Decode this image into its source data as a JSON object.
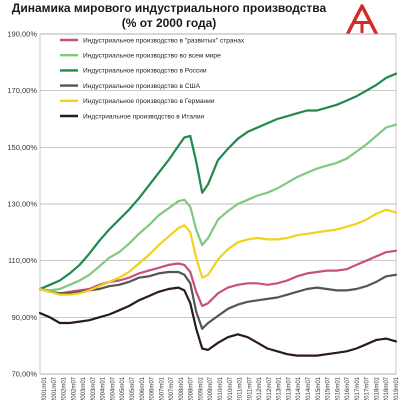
{
  "header": {
    "title_line1": "Динамика мирового индустриального производства",
    "title_line2": "(% от 2000 года)",
    "logo_icon": "red-triangle-logo-icon"
  },
  "chart_data": {
    "type": "line",
    "ylim": [
      70,
      190
    ],
    "yticks": [
      70,
      90,
      110,
      130,
      150,
      170,
      190
    ],
    "ytick_labels": [
      "70,00%",
      "90,00%",
      "110,00%",
      "130,00%",
      "150,00%",
      "170,00%",
      "190,00%"
    ],
    "grid": true,
    "legend_position": "top-left",
    "x_labels": [
      "2001m01",
      "2001m07",
      "2002m01",
      "2002m07",
      "2003m01",
      "2003m07",
      "2004m01",
      "2004m07",
      "2005m01",
      "2005m07",
      "2006m01",
      "2006m07",
      "2007m01",
      "2007m07",
      "2008m01",
      "2008m07",
      "2009m01",
      "2009m07",
      "2010m01",
      "2010m07",
      "2011m01",
      "2011m07",
      "2012m01",
      "2012m07",
      "2013m01",
      "2013m07",
      "2014m01",
      "2014m07",
      "2015m01",
      "2015m07",
      "2016m01",
      "2016m07",
      "2017m01",
      "2017m07",
      "2018m01",
      "2018m07",
      "2019m01"
    ],
    "series": [
      {
        "name": "Индустриальное производство в \"развитых\" странах",
        "color": "#c8507a",
        "values": [
          [
            2001.0,
            100
          ],
          [
            2001.5,
            99
          ],
          [
            2002.0,
            98.5
          ],
          [
            2002.5,
            99
          ],
          [
            2003.0,
            99.5
          ],
          [
            2003.5,
            100
          ],
          [
            2004.0,
            101.5
          ],
          [
            2004.5,
            102.5
          ],
          [
            2005.0,
            103
          ],
          [
            2005.5,
            104
          ],
          [
            2006.0,
            105.5
          ],
          [
            2006.5,
            106.5
          ],
          [
            2007.0,
            107.5
          ],
          [
            2007.5,
            108.5
          ],
          [
            2008.0,
            109
          ],
          [
            2008.3,
            108.5
          ],
          [
            2008.6,
            106
          ],
          [
            2008.9,
            99
          ],
          [
            2009.2,
            94
          ],
          [
            2009.5,
            95
          ],
          [
            2010.0,
            98.5
          ],
          [
            2010.5,
            100.5
          ],
          [
            2011.0,
            101.5
          ],
          [
            2011.5,
            102
          ],
          [
            2012.0,
            102
          ],
          [
            2012.5,
            101.5
          ],
          [
            2013.0,
            102
          ],
          [
            2013.5,
            103
          ],
          [
            2014.0,
            104.5
          ],
          [
            2014.5,
            105.5
          ],
          [
            2015.0,
            106
          ],
          [
            2015.5,
            106.5
          ],
          [
            2016.0,
            106.5
          ],
          [
            2016.5,
            107
          ],
          [
            2017.0,
            108.5
          ],
          [
            2017.5,
            110
          ],
          [
            2018.0,
            111.5
          ],
          [
            2018.5,
            113
          ],
          [
            2019.0,
            113.5
          ]
        ]
      },
      {
        "name": "Индустриальное производство во всем мире",
        "color": "#7fc97f",
        "values": [
          [
            2001.0,
            100
          ],
          [
            2001.5,
            99.5
          ],
          [
            2002.0,
            100
          ],
          [
            2002.5,
            101.5
          ],
          [
            2003.0,
            103
          ],
          [
            2003.5,
            105
          ],
          [
            2004.0,
            108
          ],
          [
            2004.5,
            111
          ],
          [
            2005.0,
            113
          ],
          [
            2005.5,
            116
          ],
          [
            2006.0,
            119.5
          ],
          [
            2006.5,
            122.5
          ],
          [
            2007.0,
            126
          ],
          [
            2007.5,
            128.5
          ],
          [
            2008.0,
            131
          ],
          [
            2008.3,
            131.5
          ],
          [
            2008.6,
            129
          ],
          [
            2008.9,
            121
          ],
          [
            2009.2,
            115.5
          ],
          [
            2009.5,
            118
          ],
          [
            2010.0,
            124.5
          ],
          [
            2010.5,
            127.5
          ],
          [
            2011.0,
            130
          ],
          [
            2011.5,
            131.5
          ],
          [
            2012.0,
            133
          ],
          [
            2012.5,
            134
          ],
          [
            2013.0,
            135.5
          ],
          [
            2013.5,
            137.5
          ],
          [
            2014.0,
            139.5
          ],
          [
            2014.5,
            141
          ],
          [
            2015.0,
            142.5
          ],
          [
            2015.5,
            143.5
          ],
          [
            2016.0,
            144.5
          ],
          [
            2016.5,
            146
          ],
          [
            2017.0,
            148.5
          ],
          [
            2017.5,
            151
          ],
          [
            2018.0,
            154
          ],
          [
            2018.5,
            157
          ],
          [
            2019.0,
            158
          ]
        ]
      },
      {
        "name": "Индустриальное производство в России",
        "color": "#1f8a4c",
        "values": [
          [
            2001.0,
            100
          ],
          [
            2001.5,
            101.5
          ],
          [
            2002.0,
            103
          ],
          [
            2002.5,
            105.5
          ],
          [
            2003.0,
            108.5
          ],
          [
            2003.5,
            112.5
          ],
          [
            2004.0,
            117
          ],
          [
            2004.5,
            121
          ],
          [
            2005.0,
            124.5
          ],
          [
            2005.5,
            128
          ],
          [
            2006.0,
            132
          ],
          [
            2006.5,
            136.5
          ],
          [
            2007.0,
            141
          ],
          [
            2007.5,
            145.5
          ],
          [
            2008.0,
            150.5
          ],
          [
            2008.3,
            153.5
          ],
          [
            2008.6,
            154
          ],
          [
            2008.9,
            145
          ],
          [
            2009.2,
            134
          ],
          [
            2009.5,
            137
          ],
          [
            2010.0,
            145.5
          ],
          [
            2010.5,
            149.5
          ],
          [
            2011.0,
            153
          ],
          [
            2011.5,
            155.5
          ],
          [
            2012.0,
            157
          ],
          [
            2012.5,
            158.5
          ],
          [
            2013.0,
            160
          ],
          [
            2013.5,
            161
          ],
          [
            2014.0,
            162
          ],
          [
            2014.5,
            163
          ],
          [
            2015.0,
            163
          ],
          [
            2015.5,
            164
          ],
          [
            2016.0,
            165
          ],
          [
            2016.5,
            166.5
          ],
          [
            2017.0,
            168
          ],
          [
            2017.5,
            170
          ],
          [
            2018.0,
            172
          ],
          [
            2018.5,
            174.5
          ],
          [
            2019.0,
            176
          ]
        ]
      },
      {
        "name": "Индустриальное производство в США",
        "color": "#555555",
        "values": [
          [
            2001.0,
            100
          ],
          [
            2001.5,
            99
          ],
          [
            2002.0,
            98.5
          ],
          [
            2002.5,
            98.5
          ],
          [
            2003.0,
            99
          ],
          [
            2003.5,
            99.5
          ],
          [
            2004.0,
            100
          ],
          [
            2004.5,
            101
          ],
          [
            2005.0,
            101.5
          ],
          [
            2005.5,
            102.5
          ],
          [
            2006.0,
            104
          ],
          [
            2006.5,
            104.5
          ],
          [
            2007.0,
            105.5
          ],
          [
            2007.5,
            106
          ],
          [
            2008.0,
            106
          ],
          [
            2008.3,
            105
          ],
          [
            2008.6,
            102
          ],
          [
            2008.9,
            92
          ],
          [
            2009.2,
            86
          ],
          [
            2009.5,
            88
          ],
          [
            2010.0,
            90.5
          ],
          [
            2010.5,
            93
          ],
          [
            2011.0,
            94.5
          ],
          [
            2011.5,
            95.5
          ],
          [
            2012.0,
            96
          ],
          [
            2012.5,
            96.5
          ],
          [
            2013.0,
            97
          ],
          [
            2013.5,
            98
          ],
          [
            2014.0,
            99
          ],
          [
            2014.5,
            100
          ],
          [
            2015.0,
            100.5
          ],
          [
            2015.5,
            100
          ],
          [
            2016.0,
            99.5
          ],
          [
            2016.5,
            99.5
          ],
          [
            2017.0,
            100
          ],
          [
            2017.5,
            101
          ],
          [
            2018.0,
            102.5
          ],
          [
            2018.5,
            104.5
          ],
          [
            2019.0,
            105
          ]
        ]
      },
      {
        "name": "Индустриальное производство в Германии",
        "color": "#f2d21b",
        "values": [
          [
            2001.0,
            100
          ],
          [
            2001.5,
            99
          ],
          [
            2002.0,
            98
          ],
          [
            2002.5,
            98
          ],
          [
            2003.0,
            98.5
          ],
          [
            2003.5,
            99.5
          ],
          [
            2004.0,
            101
          ],
          [
            2004.5,
            102.5
          ],
          [
            2005.0,
            104
          ],
          [
            2005.5,
            106
          ],
          [
            2006.0,
            109
          ],
          [
            2006.5,
            112
          ],
          [
            2007.0,
            115.5
          ],
          [
            2007.5,
            118.5
          ],
          [
            2008.0,
            121.5
          ],
          [
            2008.3,
            122.5
          ],
          [
            2008.6,
            120
          ],
          [
            2008.9,
            111
          ],
          [
            2009.2,
            104
          ],
          [
            2009.5,
            105
          ],
          [
            2010.0,
            110.5
          ],
          [
            2010.5,
            114
          ],
          [
            2011.0,
            116.5
          ],
          [
            2011.5,
            117.5
          ],
          [
            2012.0,
            118
          ],
          [
            2012.5,
            117.5
          ],
          [
            2013.0,
            117.5
          ],
          [
            2013.5,
            118
          ],
          [
            2014.0,
            119
          ],
          [
            2014.5,
            119.5
          ],
          [
            2015.0,
            120
          ],
          [
            2015.5,
            120.5
          ],
          [
            2016.0,
            121
          ],
          [
            2016.5,
            122
          ],
          [
            2017.0,
            123
          ],
          [
            2017.5,
            124.5
          ],
          [
            2018.0,
            126.5
          ],
          [
            2018.5,
            128
          ],
          [
            2019.0,
            127
          ]
        ]
      },
      {
        "name": "Индстриальное производство в Италии",
        "color": "#2b1b1b",
        "values": [
          [
            2001.0,
            91.5
          ],
          [
            2001.5,
            90
          ],
          [
            2002.0,
            88
          ],
          [
            2002.5,
            88
          ],
          [
            2003.0,
            88.5
          ],
          [
            2003.5,
            89
          ],
          [
            2004.0,
            90
          ],
          [
            2004.5,
            91
          ],
          [
            2005.0,
            92.5
          ],
          [
            2005.5,
            94
          ],
          [
            2006.0,
            96
          ],
          [
            2006.5,
            97.5
          ],
          [
            2007.0,
            99
          ],
          [
            2007.5,
            100
          ],
          [
            2008.0,
            100.5
          ],
          [
            2008.3,
            99.5
          ],
          [
            2008.6,
            95
          ],
          [
            2008.9,
            86
          ],
          [
            2009.2,
            79
          ],
          [
            2009.5,
            78.5
          ],
          [
            2010.0,
            81
          ],
          [
            2010.5,
            83
          ],
          [
            2011.0,
            84
          ],
          [
            2011.5,
            83
          ],
          [
            2012.0,
            81
          ],
          [
            2012.5,
            79
          ],
          [
            2013.0,
            78
          ],
          [
            2013.5,
            77
          ],
          [
            2014.0,
            76.5
          ],
          [
            2014.5,
            76.5
          ],
          [
            2015.0,
            76.5
          ],
          [
            2015.5,
            77
          ],
          [
            2016.0,
            77.5
          ],
          [
            2016.5,
            78
          ],
          [
            2017.0,
            79
          ],
          [
            2017.5,
            80.5
          ],
          [
            2018.0,
            82
          ],
          [
            2018.5,
            82.5
          ],
          [
            2019.0,
            81.5
          ]
        ]
      }
    ]
  }
}
